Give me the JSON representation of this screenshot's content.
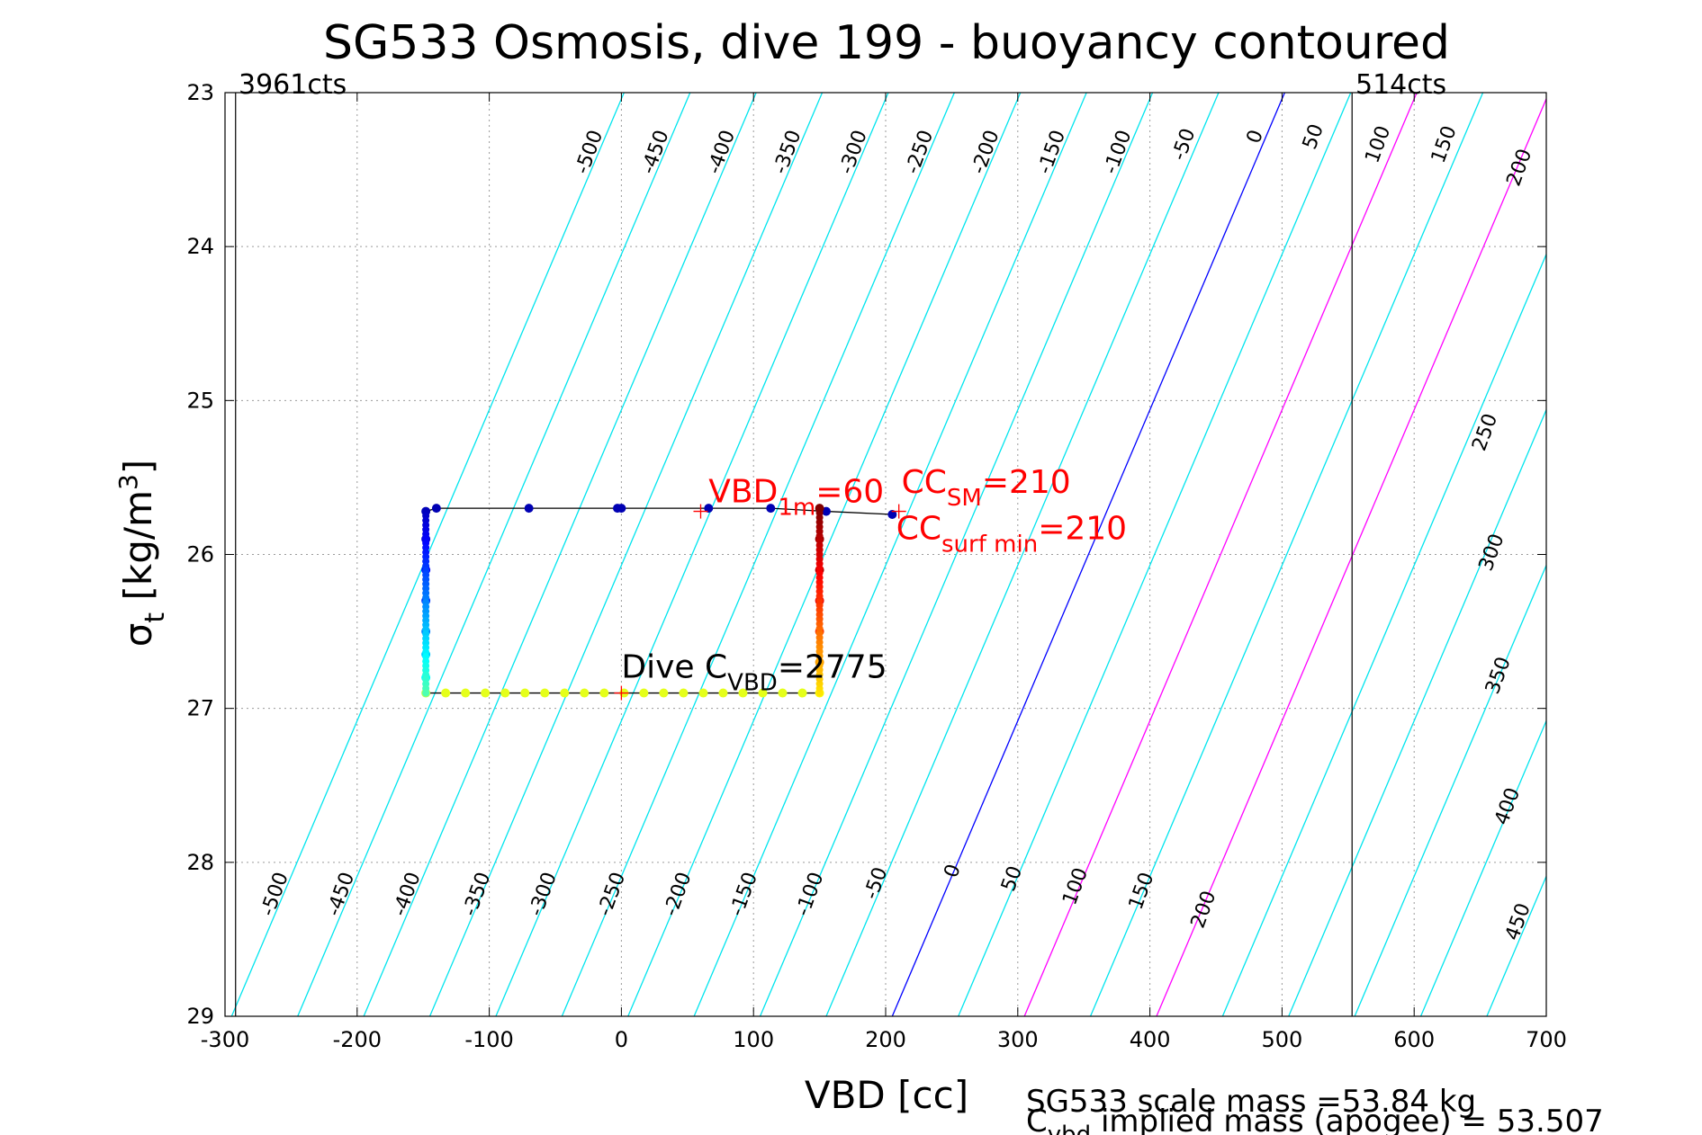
{
  "chart_data": {
    "type": "scatter",
    "title": "SG533 Osmosis, dive 199 - buoyancy contoured",
    "xlabel": "VBD [cc]",
    "ylabel_main": "σ",
    "ylabel_sub": "t",
    "ylabel_unit": "[kg/m",
    "ylabel_sup": "3",
    "ylabel_close": "]",
    "xlim": [
      -300,
      700
    ],
    "ylim": [
      23,
      29
    ],
    "y_reversed": true,
    "grid": true,
    "xticks": [
      "-300",
      "-200",
      "-100",
      "0",
      "100",
      "200",
      "300",
      "400",
      "500",
      "600",
      "700"
    ],
    "yticks": [
      "23",
      "24",
      "25",
      "26",
      "27",
      "28",
      "29"
    ],
    "counts_left": "3961cts",
    "counts_right": "514cts",
    "counts_left_x": -292,
    "counts_right_x": 553,
    "contour_zero_x_at_top": 502,
    "contour_zero_x_at_bottom": 205,
    "contour_spacing_cc": 50,
    "contours": [
      {
        "level": -500,
        "label": "-500",
        "color": "#00e5ee"
      },
      {
        "level": -450,
        "label": "-450",
        "color": "#00e5ee"
      },
      {
        "level": -400,
        "label": "-400",
        "color": "#00e5ee"
      },
      {
        "level": -350,
        "label": "-350",
        "color": "#00e5ee"
      },
      {
        "level": -300,
        "label": "-300",
        "color": "#00e5ee"
      },
      {
        "level": -250,
        "label": "-250",
        "color": "#00e5ee"
      },
      {
        "level": -200,
        "label": "-200",
        "color": "#00e5ee"
      },
      {
        "level": -150,
        "label": "-150",
        "color": "#00e5ee"
      },
      {
        "level": -100,
        "label": "-100",
        "color": "#00e5ee"
      },
      {
        "level": -50,
        "label": "-50",
        "color": "#00e5ee"
      },
      {
        "level": 0,
        "label": "0",
        "color": "#0000ff"
      },
      {
        "level": 50,
        "label": "50",
        "color": "#00e5ee"
      },
      {
        "level": 100,
        "label": "100",
        "color": "#ff00ff"
      },
      {
        "level": 150,
        "label": "150",
        "color": "#00e5ee"
      },
      {
        "level": 200,
        "label": "200",
        "color": "#ff00ff"
      },
      {
        "level": 250,
        "label": "250",
        "color": "#00e5ee"
      },
      {
        "level": 300,
        "label": "300",
        "color": "#00e5ee"
      },
      {
        "level": 350,
        "label": "350",
        "color": "#00e5ee"
      },
      {
        "level": 400,
        "label": "400",
        "color": "#00e5ee"
      },
      {
        "level": 450,
        "label": "450",
        "color": "#00e5ee"
      }
    ],
    "contour_labels": [
      {
        "text": "-500",
        "x": -20,
        "y": 23.4
      },
      {
        "text": "-450",
        "x": 30,
        "y": 23.4
      },
      {
        "text": "-400",
        "x": 80,
        "y": 23.4
      },
      {
        "text": "-350",
        "x": 130,
        "y": 23.4
      },
      {
        "text": "-300",
        "x": 180,
        "y": 23.4
      },
      {
        "text": "-250",
        "x": 230,
        "y": 23.4
      },
      {
        "text": "-200",
        "x": 280,
        "y": 23.4
      },
      {
        "text": "-150",
        "x": 330,
        "y": 23.4
      },
      {
        "text": "-100",
        "x": 380,
        "y": 23.4
      },
      {
        "text": "-50",
        "x": 430,
        "y": 23.35
      },
      {
        "text": "0",
        "x": 484,
        "y": 23.3
      },
      {
        "text": "50",
        "x": 528,
        "y": 23.3
      },
      {
        "text": "100",
        "x": 577,
        "y": 23.35
      },
      {
        "text": "150",
        "x": 627,
        "y": 23.35
      },
      {
        "text": "200",
        "x": 684,
        "y": 23.5
      },
      {
        "text": "250",
        "x": 658,
        "y": 25.22
      },
      {
        "text": "300",
        "x": 663,
        "y": 26.0
      },
      {
        "text": "350",
        "x": 668,
        "y": 26.8
      },
      {
        "text": "400",
        "x": 675,
        "y": 27.65
      },
      {
        "text": "450",
        "x": 683,
        "y": 28.4
      },
      {
        "text": "-500",
        "x": -258,
        "y": 28.22
      },
      {
        "text": "-450",
        "x": -208,
        "y": 28.22
      },
      {
        "text": "-400",
        "x": -158,
        "y": 28.22
      },
      {
        "text": "-350",
        "x": -105,
        "y": 28.22
      },
      {
        "text": "-300",
        "x": -55,
        "y": 28.22
      },
      {
        "text": "-250",
        "x": -3,
        "y": 28.22
      },
      {
        "text": "-200",
        "x": 47,
        "y": 28.22
      },
      {
        "text": "-150",
        "x": 97,
        "y": 28.22
      },
      {
        "text": "-100",
        "x": 147,
        "y": 28.22
      },
      {
        "text": "-50",
        "x": 197,
        "y": 28.15
      },
      {
        "text": "0",
        "x": 255,
        "y": 28.07
      },
      {
        "text": "50",
        "x": 300,
        "y": 28.12
      },
      {
        "text": "100",
        "x": 348,
        "y": 28.17
      },
      {
        "text": "150",
        "x": 398,
        "y": 28.2
      },
      {
        "text": "200",
        "x": 445,
        "y": 28.32
      }
    ],
    "legend": "none",
    "series": [
      {
        "name": "",
        "type": "line",
        "color": "#000000",
        "points": [
          [
            -148,
            25.72
          ],
          [
            -140,
            25.7
          ],
          [
            -70,
            25.7
          ],
          [
            -3,
            25.7
          ],
          [
            66,
            25.7
          ],
          [
            113,
            25.7
          ],
          [
            155,
            25.72
          ],
          [
            205,
            25.74
          ]
        ]
      },
      {
        "name": "",
        "type": "line",
        "color": "#000000",
        "points": [
          [
            -148,
            25.72
          ],
          [
            -148,
            26.9
          ],
          [
            150,
            26.9
          ],
          [
            150,
            25.7
          ]
        ]
      },
      {
        "name": "",
        "type": "scatter",
        "colormap": "jet",
        "points": [
          {
            "x": -148,
            "y": 25.72,
            "c": 0.05
          },
          {
            "x": -140,
            "y": 25.7,
            "c": 0.05
          },
          {
            "x": -70,
            "y": 25.7,
            "c": 0.05
          },
          {
            "x": -3,
            "y": 25.7,
            "c": 0.05
          },
          {
            "x": 0,
            "y": 25.7,
            "c": 0.05
          },
          {
            "x": 66,
            "y": 25.7,
            "c": 0.05
          },
          {
            "x": 113,
            "y": 25.7,
            "c": 0.05
          },
          {
            "x": 155,
            "y": 25.72,
            "c": 0.05
          },
          {
            "x": 205,
            "y": 25.74,
            "c": 0.05
          },
          {
            "x": -148,
            "y": 25.9,
            "c": 0.08
          },
          {
            "x": -148,
            "y": 26.1,
            "c": 0.12
          },
          {
            "x": -148,
            "y": 26.3,
            "c": 0.18
          },
          {
            "x": -148,
            "y": 26.5,
            "c": 0.25
          },
          {
            "x": -148,
            "y": 26.65,
            "c": 0.32
          },
          {
            "x": -148,
            "y": 26.8,
            "c": 0.38
          },
          {
            "x": -148,
            "y": 26.9,
            "c": 0.55
          },
          {
            "x": -133,
            "y": 26.9,
            "c": 0.6
          },
          {
            "x": -118,
            "y": 26.9,
            "c": 0.6
          },
          {
            "x": -103,
            "y": 26.9,
            "c": 0.6
          },
          {
            "x": -88,
            "y": 26.9,
            "c": 0.6
          },
          {
            "x": -73,
            "y": 26.9,
            "c": 0.6
          },
          {
            "x": -58,
            "y": 26.9,
            "c": 0.6
          },
          {
            "x": -43,
            "y": 26.9,
            "c": 0.6
          },
          {
            "x": -28,
            "y": 26.9,
            "c": 0.6
          },
          {
            "x": -13,
            "y": 26.9,
            "c": 0.6
          },
          {
            "x": 2,
            "y": 26.9,
            "c": 0.6
          },
          {
            "x": 17,
            "y": 26.9,
            "c": 0.6
          },
          {
            "x": 32,
            "y": 26.9,
            "c": 0.6
          },
          {
            "x": 47,
            "y": 26.9,
            "c": 0.6
          },
          {
            "x": 62,
            "y": 26.9,
            "c": 0.6
          },
          {
            "x": 77,
            "y": 26.9,
            "c": 0.6
          },
          {
            "x": 92,
            "y": 26.9,
            "c": 0.6
          },
          {
            "x": 107,
            "y": 26.9,
            "c": 0.6
          },
          {
            "x": 122,
            "y": 26.9,
            "c": 0.6
          },
          {
            "x": 137,
            "y": 26.9,
            "c": 0.6
          },
          {
            "x": 150,
            "y": 26.9,
            "c": 0.62
          },
          {
            "x": 150,
            "y": 26.7,
            "c": 0.72
          },
          {
            "x": 150,
            "y": 26.5,
            "c": 0.82
          },
          {
            "x": 150,
            "y": 26.3,
            "c": 0.9
          },
          {
            "x": 150,
            "y": 26.1,
            "c": 0.95
          },
          {
            "x": 150,
            "y": 25.9,
            "c": 0.98
          },
          {
            "x": 150,
            "y": 25.7,
            "c": 1.0
          }
        ]
      }
    ],
    "markers": [
      {
        "x": 60,
        "y": 25.72,
        "color": "#ff0000",
        "symbol": "+"
      },
      {
        "x": 210,
        "y": 25.72,
        "color": "#ff0000",
        "symbol": "+"
      },
      {
        "x": 0,
        "y": 26.9,
        "color": "#ff0000",
        "symbol": "+"
      }
    ],
    "annotations": [
      {
        "text": "VBD",
        "sub": "1m",
        "suffix": "=60",
        "x": 66,
        "y": 25.66,
        "color": "#ff0000"
      },
      {
        "text": "CC",
        "sub": "SM",
        "suffix": "=210",
        "x": 212,
        "y": 25.6,
        "color": "#ff0000"
      },
      {
        "text": "CC",
        "sub": "surf min",
        "suffix": "=210",
        "x": 208,
        "y": 25.9,
        "color": "#ff0000"
      },
      {
        "text": "Dive C",
        "sub": "VBD",
        "suffix": "=2775",
        "x": 0,
        "y": 26.8,
        "color": "#000000"
      }
    ],
    "vertical_lines": [
      {
        "x": -292,
        "color": "#000000"
      },
      {
        "x": 553,
        "color": "#000000"
      }
    ],
    "footer_line1": "SG533 scale mass =53.84 kg",
    "footer_line2_prefix": "C",
    "footer_line2_sub": "vbd",
    "footer_line2_suffix": " implied mass (apogee) = 53.507"
  }
}
